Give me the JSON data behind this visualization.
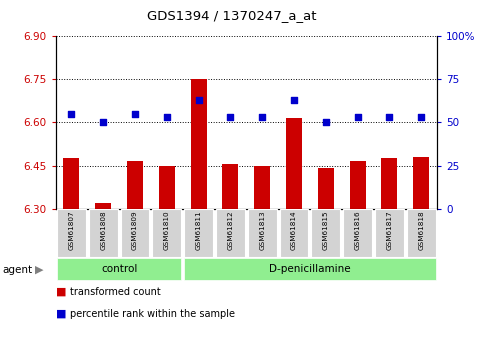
{
  "title": "GDS1394 / 1370247_a_at",
  "samples": [
    "GSM61807",
    "GSM61808",
    "GSM61809",
    "GSM61810",
    "GSM61811",
    "GSM61812",
    "GSM61813",
    "GSM61814",
    "GSM61815",
    "GSM61816",
    "GSM61817",
    "GSM61818"
  ],
  "red_values": [
    6.475,
    6.32,
    6.465,
    6.45,
    6.75,
    6.455,
    6.45,
    6.615,
    6.443,
    6.465,
    6.475,
    6.48
  ],
  "blue_values": [
    55,
    50,
    55,
    53,
    63,
    53,
    53,
    63,
    50,
    53,
    53,
    53
  ],
  "ylim_left": [
    6.3,
    6.9
  ],
  "ylim_right": [
    0,
    100
  ],
  "yticks_left": [
    6.3,
    6.45,
    6.6,
    6.75,
    6.9
  ],
  "yticks_right": [
    0,
    25,
    50,
    75,
    100
  ],
  "control_samples": 4,
  "control_label": "control",
  "treatment_label": "D-penicillamine",
  "agent_label": "agent",
  "legend_red": "transformed count",
  "legend_blue": "percentile rank within the sample",
  "red_color": "#cc0000",
  "blue_color": "#0000cc",
  "green_bg": "#90ee90",
  "gray_bg": "#d3d3d3",
  "bar_width": 0.5,
  "left_color": "#cc0000",
  "right_color": "#0000cc"
}
